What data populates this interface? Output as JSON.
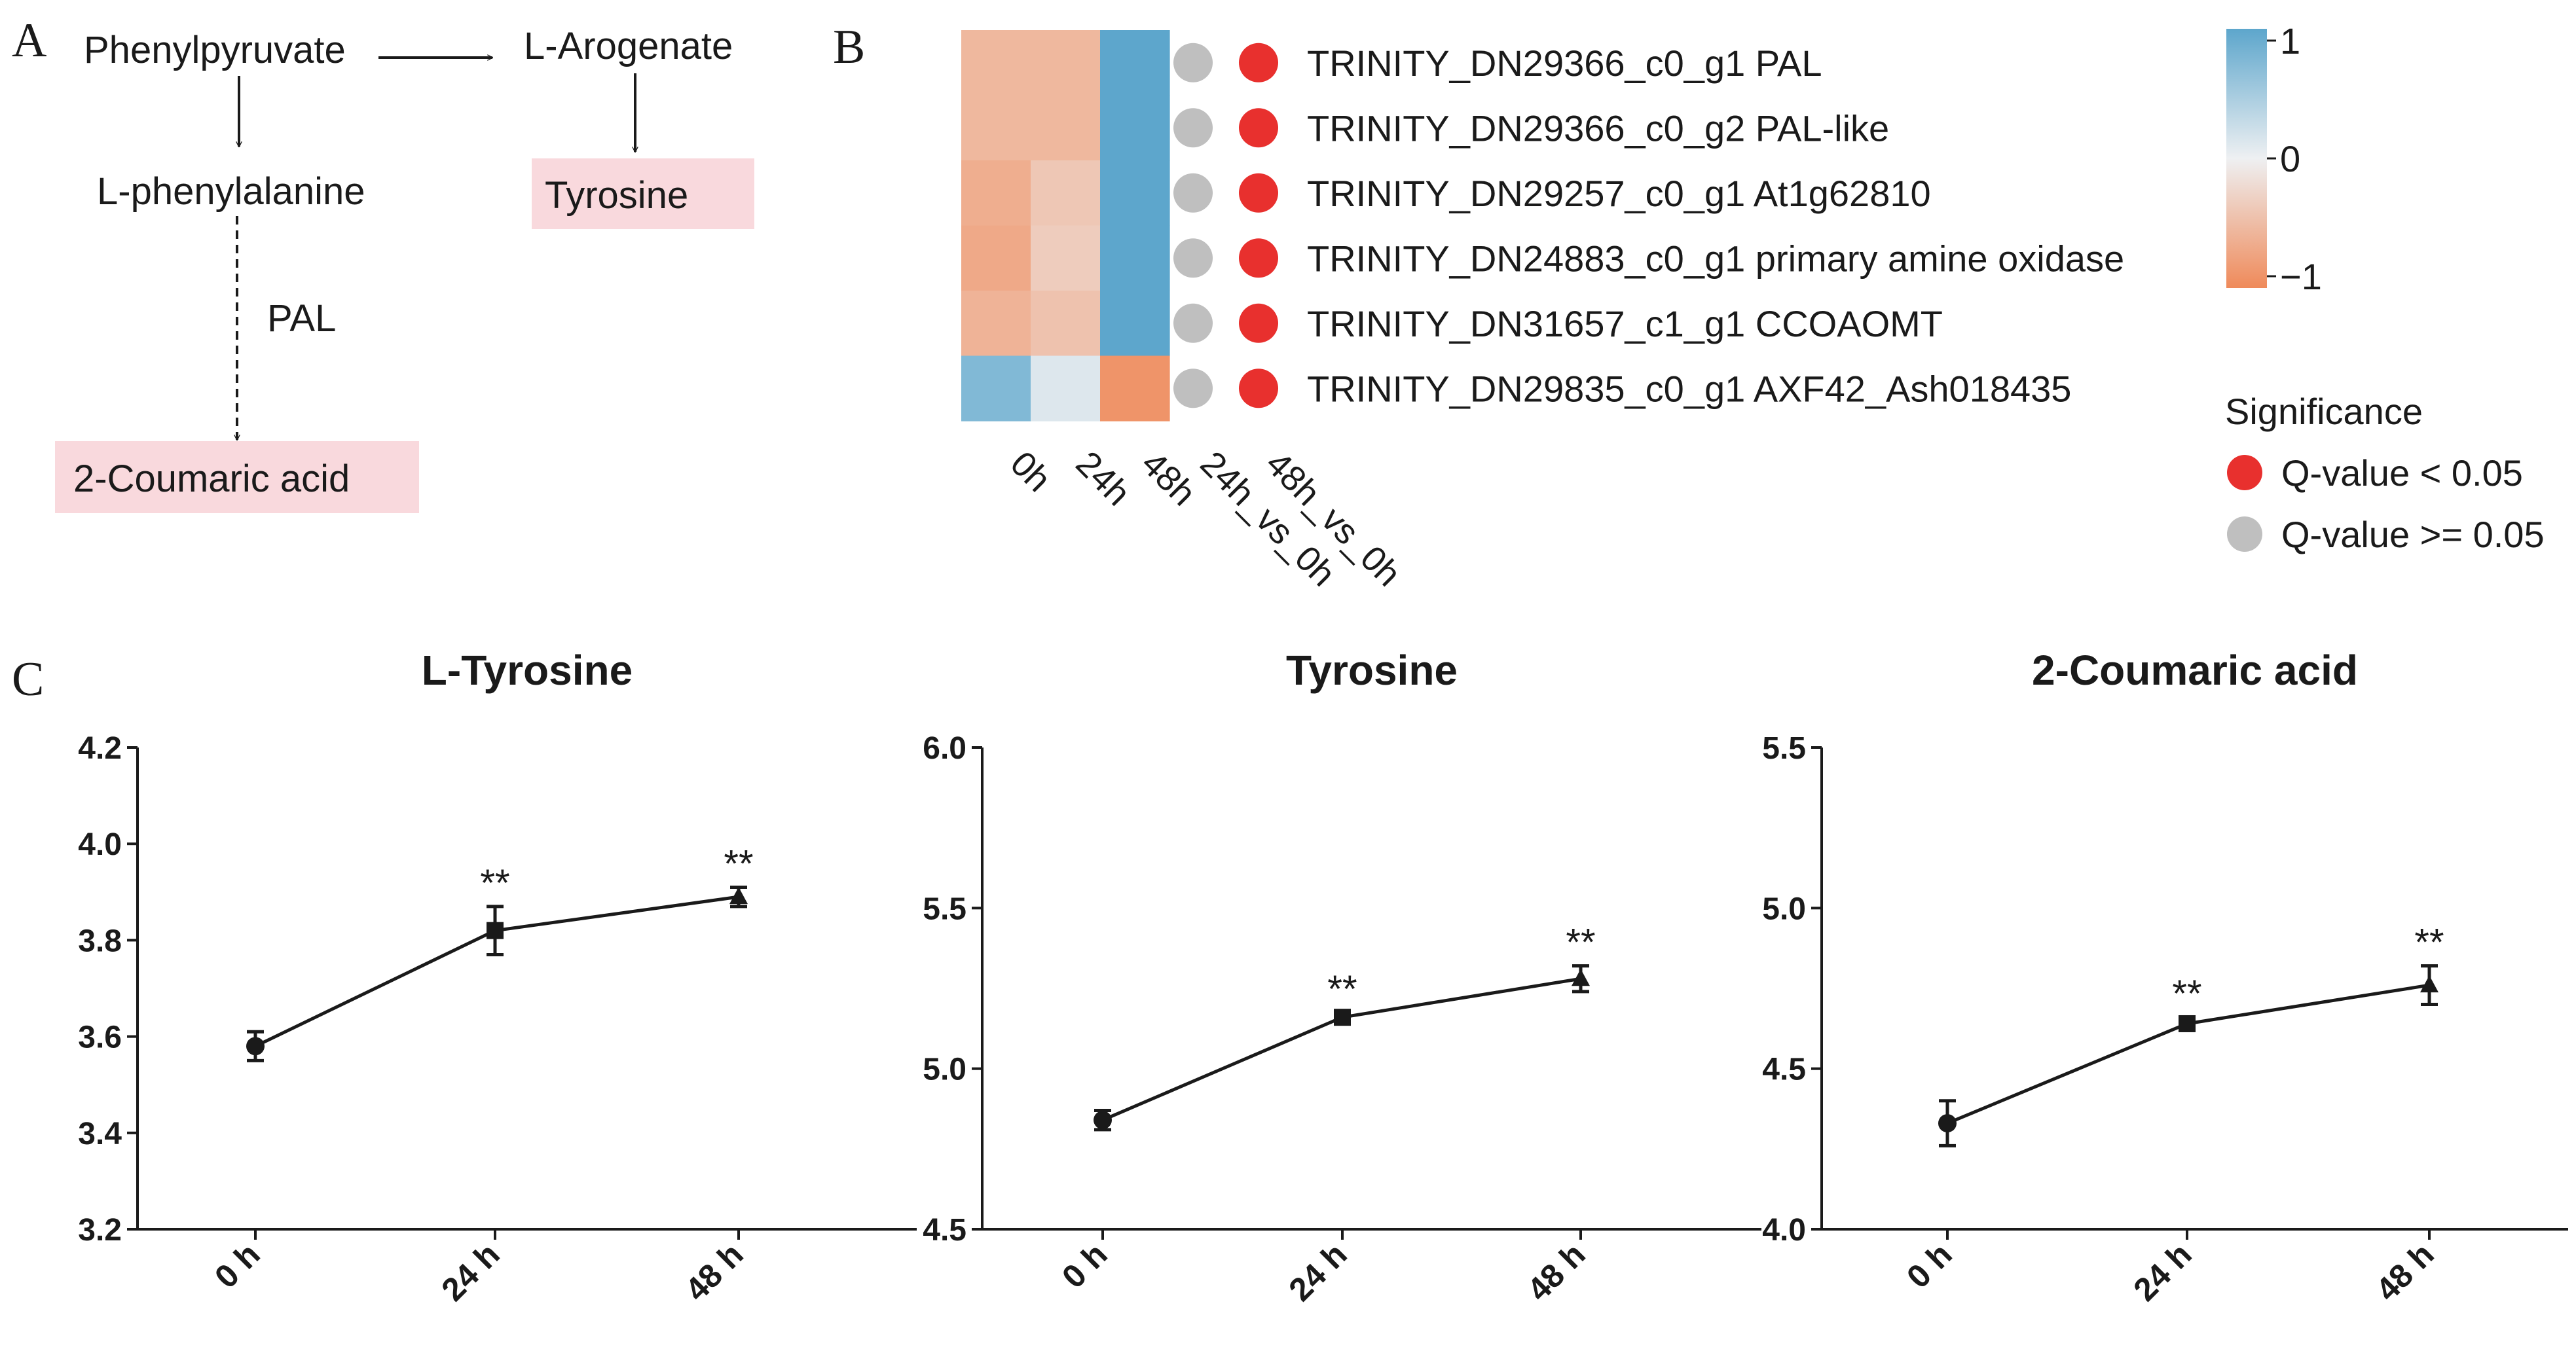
{
  "panels": {
    "a": "A",
    "b": "B",
    "c": "C"
  },
  "pathway": {
    "phenylpyruvate": "Phenylpyruvate",
    "arogenate": "L-Arogenate",
    "phenylalanine": "L-phenylalanine",
    "tyrosine": "Tyrosine",
    "pal": "PAL",
    "coumaric": "2-Coumaric acid",
    "highlight_color": "#f9d9dd"
  },
  "heatmap": {
    "columns": [
      "0h",
      "24h",
      "48h"
    ],
    "significance_columns": [
      "24h_vs_0h",
      "48h_vs_0h"
    ],
    "genes": [
      {
        "label": "TRINITY_DN29366_c0_g1 PAL",
        "values": [
          -0.55,
          -0.55,
          1.1
        ],
        "sig": [
          "gray",
          "red"
        ]
      },
      {
        "label": "TRINITY_DN29366_c0_g2 PAL-like",
        "values": [
          -0.55,
          -0.55,
          1.1
        ],
        "sig": [
          "gray",
          "red"
        ]
      },
      {
        "label": "TRINITY_DN29257_c0_g1 At1g62810",
        "values": [
          -0.65,
          -0.4,
          1.1
        ],
        "sig": [
          "gray",
          "red"
        ]
      },
      {
        "label": "TRINITY_DN24883_c0_g1 primary amine oxidase",
        "values": [
          -0.7,
          -0.35,
          1.1
        ],
        "sig": [
          "gray",
          "red"
        ]
      },
      {
        "label": "TRINITY_DN31657_c1_g1 CCOAOMT",
        "values": [
          -0.6,
          -0.45,
          1.1
        ],
        "sig": [
          "gray",
          "red"
        ]
      },
      {
        "label": "TRINITY_DN29835_c0_g1 AXF42_Ash018435",
        "values": [
          0.75,
          0.12,
          -0.9
        ],
        "sig": [
          "gray",
          "red"
        ]
      }
    ],
    "colorbar": {
      "ticks": [
        "1",
        "0",
        "−1"
      ],
      "min": -1.1,
      "max": 1.1
    },
    "colors": {
      "high": "#5da6cc",
      "mid": "#eef0f2",
      "low": "#ef8a5a",
      "sig_red": "#e8302e",
      "sig_gray": "#bfbfbf"
    },
    "legend": {
      "title": "Significance",
      "red_label": "Q-value < 0.05",
      "gray_label": "Q-value >= 0.05"
    }
  },
  "chart_data": [
    {
      "type": "line",
      "title": "L-Tyrosine",
      "categories": [
        "0 h",
        "24 h",
        "48 h"
      ],
      "values": [
        3.58,
        3.82,
        3.89
      ],
      "errors": [
        0.03,
        0.05,
        0.02
      ],
      "markers": [
        "circle",
        "square",
        "triangle"
      ],
      "annotations": [
        "",
        "**",
        "**"
      ],
      "ylim": [
        3.2,
        4.2
      ],
      "yticks": [
        3.2,
        3.4,
        3.6,
        3.8,
        4.0,
        4.2
      ],
      "ytick_labels": [
        "3.2",
        "3.4",
        "3.6",
        "3.8",
        "4.0",
        "4.2"
      ],
      "xlabel": "",
      "ylabel": ""
    },
    {
      "type": "line",
      "title": "Tyrosine",
      "categories": [
        "0 h",
        "24 h",
        "48 h"
      ],
      "values": [
        4.84,
        5.16,
        5.28
      ],
      "errors": [
        0.03,
        0.015,
        0.04
      ],
      "markers": [
        "circle",
        "square",
        "triangle"
      ],
      "annotations": [
        "",
        "**",
        "**"
      ],
      "ylim": [
        4.5,
        6.0
      ],
      "yticks": [
        4.5,
        5.0,
        5.5,
        6.0
      ],
      "ytick_labels": [
        "4.5",
        "5.0",
        "5.5",
        "6.0"
      ],
      "xlabel": "",
      "ylabel": ""
    },
    {
      "type": "line",
      "title": "2-Coumaric acid",
      "categories": [
        "0 h",
        "24 h",
        "48 h"
      ],
      "values": [
        4.33,
        4.64,
        4.76
      ],
      "errors": [
        0.07,
        0.02,
        0.06
      ],
      "markers": [
        "circle",
        "square",
        "triangle"
      ],
      "annotations": [
        "",
        "**",
        "**"
      ],
      "ylim": [
        4.0,
        5.5
      ],
      "yticks": [
        4.0,
        4.5,
        5.0,
        5.5
      ],
      "ytick_labels": [
        "4.0",
        "4.5",
        "5.0",
        "5.5"
      ],
      "xlabel": "",
      "ylabel": ""
    }
  ]
}
